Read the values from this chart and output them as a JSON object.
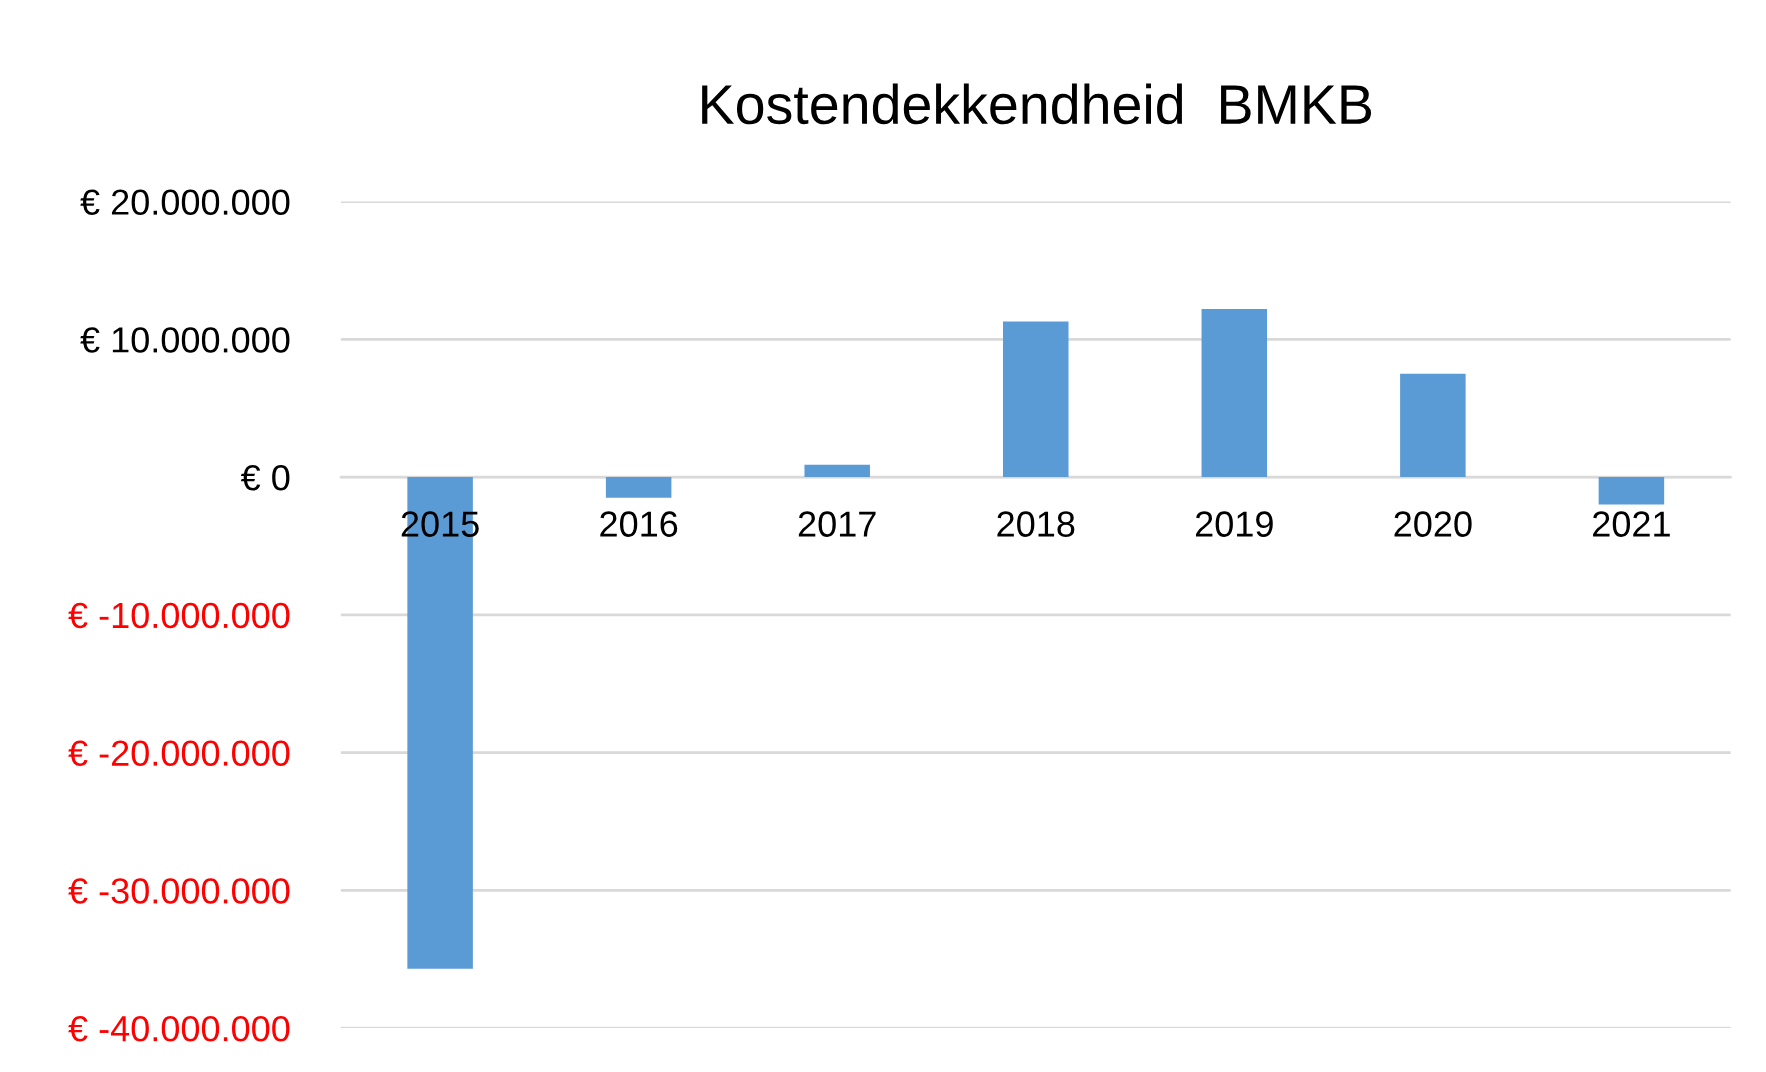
{
  "chart_data": {
    "type": "bar",
    "title": "Kostendekkendheid  BMKB",
    "categories": [
      "2015",
      "2016",
      "2017",
      "2018",
      "2019",
      "2020",
      "2021"
    ],
    "values": [
      -35700000,
      -1500000,
      900000,
      11300000,
      12200000,
      7500000,
      -2000000
    ],
    "color": "#5b9bd5",
    "ylim": [
      -40000000,
      20000000
    ],
    "yticks": [
      {
        "value": -40000000,
        "label": "€ -40.000.000"
      },
      {
        "value": -30000000,
        "label": "€ -30.000.000"
      },
      {
        "value": -20000000,
        "label": "€ -20.000.000"
      },
      {
        "value": -10000000,
        "label": "€ -10.000.000"
      },
      {
        "value": 0,
        "label": "€ 0"
      },
      {
        "value": 10000000,
        "label": "€ 10.000.000"
      },
      {
        "value": 20000000,
        "label": "€ 20.000.000"
      }
    ],
    "grid": "y"
  }
}
